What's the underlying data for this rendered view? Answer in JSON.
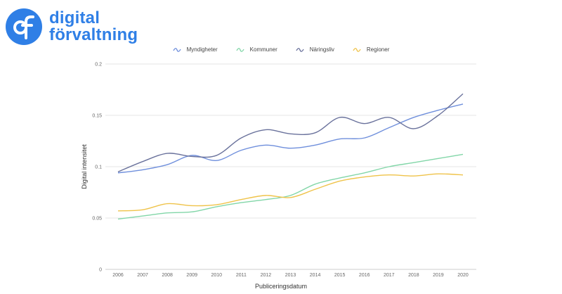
{
  "brand": {
    "line1": "digital",
    "line2": "förvaltning",
    "color": "#2f7fe6"
  },
  "chart_data": {
    "type": "line",
    "title": "",
    "xlabel": "Publiceringsdatum",
    "ylabel": "Digital intensitet",
    "ylim": [
      0,
      0.2
    ],
    "yticks": [
      0,
      0.05,
      0.1,
      0.15,
      0.2
    ],
    "ytick_labels": [
      "0",
      "0.05",
      "0.1",
      "0.15",
      "0.2"
    ],
    "x": [
      2006,
      2007,
      2008,
      2009,
      2010,
      2011,
      2012,
      2013,
      2014,
      2015,
      2016,
      2017,
      2018,
      2019,
      2020
    ],
    "grid": true,
    "legend_position": "top",
    "series": [
      {
        "name": "Myndigheter",
        "color": "#6f8fdc",
        "values": [
          0.094,
          0.097,
          0.102,
          0.111,
          0.106,
          0.116,
          0.121,
          0.118,
          0.121,
          0.127,
          0.128,
          0.138,
          0.148,
          0.155,
          0.161
        ]
      },
      {
        "name": "Kommuner",
        "color": "#82d6a8",
        "values": [
          0.049,
          0.052,
          0.055,
          0.056,
          0.061,
          0.065,
          0.068,
          0.072,
          0.083,
          0.089,
          0.094,
          0.1,
          0.104,
          0.108,
          0.112
        ]
      },
      {
        "name": "Näringsliv",
        "color": "#6a729c",
        "values": [
          0.095,
          0.105,
          0.113,
          0.11,
          0.111,
          0.128,
          0.136,
          0.132,
          0.133,
          0.148,
          0.142,
          0.148,
          0.137,
          0.15,
          0.171
        ]
      },
      {
        "name": "Regioner",
        "color": "#efc34a",
        "values": [
          0.057,
          0.058,
          0.064,
          0.062,
          0.063,
          0.068,
          0.072,
          0.07,
          0.078,
          0.086,
          0.09,
          0.092,
          0.091,
          0.093,
          0.092
        ]
      }
    ]
  }
}
